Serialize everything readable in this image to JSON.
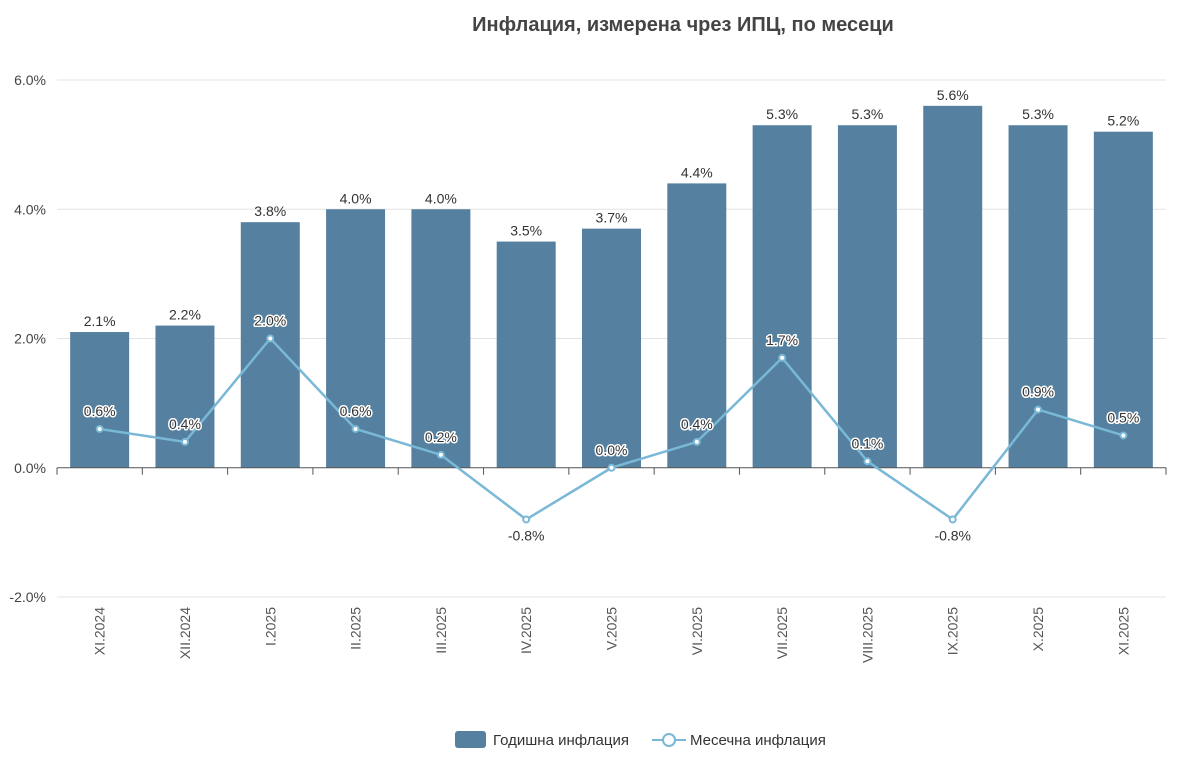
{
  "chart_data": {
    "type": "bar",
    "title": "Инфлация, измерена чрез ИПЦ, по месеци",
    "categories": [
      "XI.2024",
      "XII.2024",
      "I.2025",
      "II.2025",
      "III.2025",
      "IV.2025",
      "V.2025",
      "VI.2025",
      "VII.2025",
      "VIII.2025",
      "IX.2025",
      "X.2025",
      "XI.2025"
    ],
    "series": [
      {
        "name": "Годишна инфлация",
        "kind": "bar",
        "color": "#55809f",
        "values": [
          2.1,
          2.2,
          3.8,
          4.0,
          4.0,
          3.5,
          3.7,
          4.4,
          5.3,
          5.3,
          5.6,
          5.3,
          5.2
        ]
      },
      {
        "name": "Месечна инфлация",
        "kind": "line",
        "color": "#79b8d6",
        "values": [
          0.6,
          0.4,
          2.0,
          0.6,
          0.2,
          -0.8,
          0.0,
          0.4,
          1.7,
          0.1,
          -0.8,
          0.9,
          0.5
        ]
      }
    ],
    "ylim": [
      -2,
      6
    ],
    "yticks": [
      -2,
      0,
      2,
      4,
      6
    ],
    "ytick_labels": [
      "-2.0%",
      "0.0%",
      "2.0%",
      "4.0%",
      "6.0%"
    ],
    "value_suffix": "%",
    "legend_position": "bottom-center",
    "grid": true
  }
}
